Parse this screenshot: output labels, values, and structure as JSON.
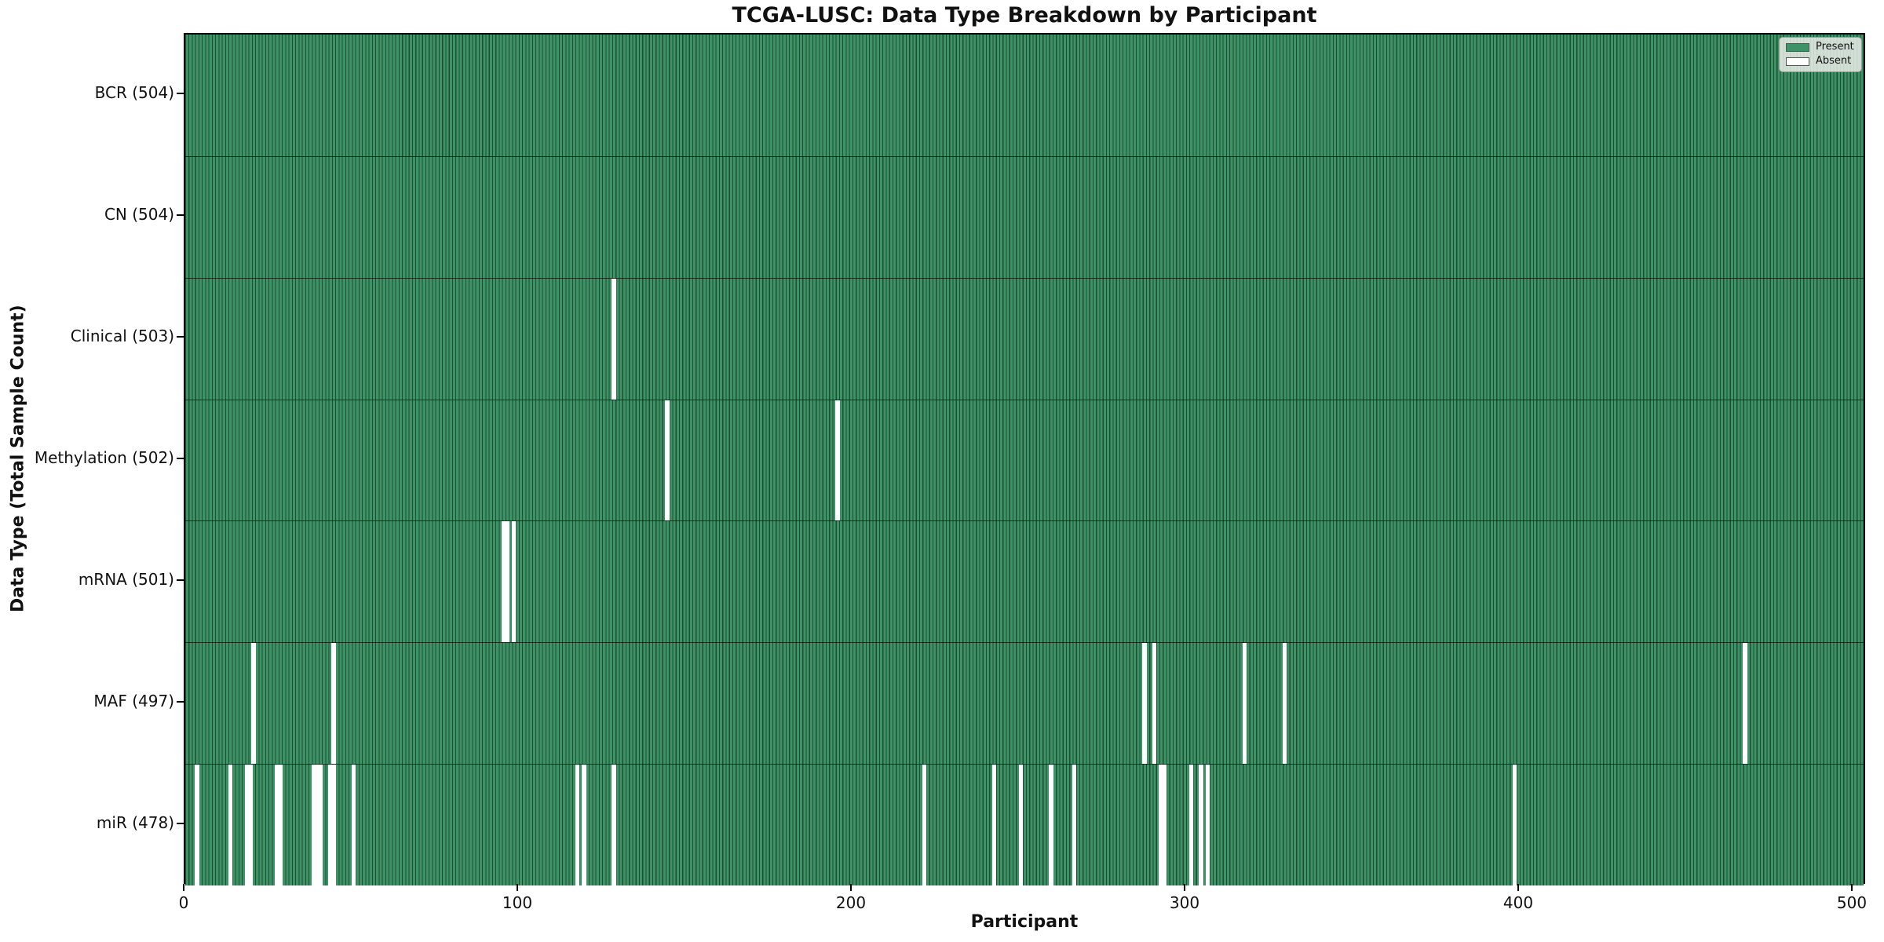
{
  "title": "TCGA-LUSC: Data Type Breakdown by Participant",
  "xlabel": "Participant",
  "ylabel": "Data Type (Total Sample Count)",
  "legend": {
    "present_label": "Present",
    "absent_label": "Absent"
  },
  "colors": {
    "present_fill": "#3d9366",
    "bar_edge": "#1e4d33",
    "absent_fill": "#ffffff",
    "axis": "#000000",
    "legend_bg": "rgba(242,242,237,0.82)"
  },
  "x_axis": {
    "tick_values": [
      0,
      100,
      200,
      300,
      400,
      500
    ],
    "tick_labels": [
      "0",
      "100",
      "200",
      "300",
      "400",
      "500"
    ]
  },
  "chart_data": {
    "type": "heatmap",
    "title": "TCGA-LUSC: Data Type Breakdown by Participant",
    "xlabel": "Participant",
    "ylabel": "Data Type (Total Sample Count)",
    "x_range": [
      0,
      504
    ],
    "n_participants": 504,
    "grid": false,
    "legend_position": "upper right",
    "legend_entries": [
      "Present",
      "Absent"
    ],
    "value_encoding": {
      "present": "green bar",
      "absent": "white gap"
    },
    "rows": [
      {
        "data_type": "BCR",
        "label": "BCR (504)",
        "total": 504,
        "absent_participants": []
      },
      {
        "data_type": "CN",
        "label": "CN (504)",
        "total": 504,
        "absent_participants": []
      },
      {
        "data_type": "Clinical",
        "label": "Clinical (503)",
        "total": 503,
        "absent_participants": [
          128
        ]
      },
      {
        "data_type": "Methylation",
        "label": "Methylation (502)",
        "total": 502,
        "absent_participants": [
          144,
          195
        ]
      },
      {
        "data_type": "mRNA",
        "label": "mRNA (501)",
        "total": 501,
        "absent_participants": [
          95,
          96,
          98
        ]
      },
      {
        "data_type": "MAF",
        "label": "MAF (497)",
        "total": 497,
        "absent_participants": [
          20,
          44,
          287,
          290,
          317,
          329,
          467
        ]
      },
      {
        "data_type": "miR",
        "label": "miR (478)",
        "total": 478,
        "absent_participants": [
          3,
          13,
          18,
          19,
          27,
          28,
          38,
          39,
          40,
          43,
          44,
          50,
          117,
          119,
          128,
          221,
          242,
          250,
          259,
          266,
          292,
          293,
          301,
          304,
          306,
          398
        ]
      }
    ]
  }
}
